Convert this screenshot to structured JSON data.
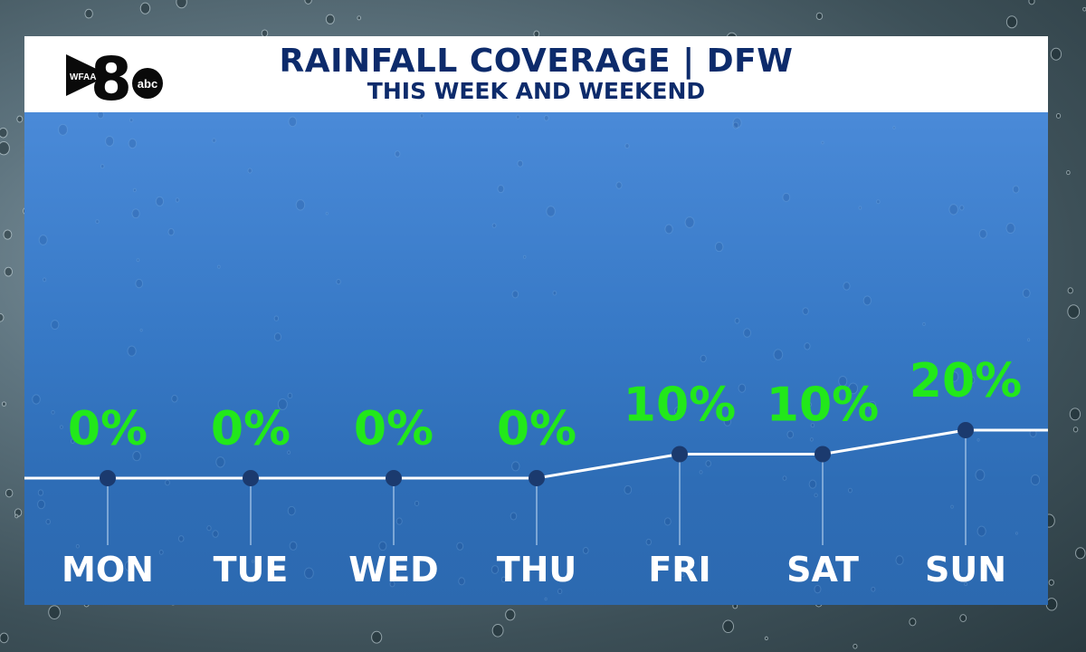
{
  "header": {
    "title": "RAINFALL COVERAGE | DFW",
    "subtitle": "THIS WEEK AND WEEKEND",
    "logo": {
      "station": "WFAA",
      "channel": "8",
      "network": "abc"
    }
  },
  "colors": {
    "title": "#0d2b6b",
    "value_label": "#22e81a",
    "day_label": "#ffffff",
    "line": "#ffffff",
    "marker": "#1b3a6e",
    "panel": "#3779c6"
  },
  "chart_data": {
    "type": "line",
    "title": "RAINFALL COVERAGE | DFW",
    "subtitle": "THIS WEEK AND WEEKEND",
    "categories": [
      "MON",
      "TUE",
      "WED",
      "THU",
      "FRI",
      "SAT",
      "SUN"
    ],
    "series": [
      {
        "values": [
          0,
          0,
          0,
          0,
          10,
          10,
          20
        ]
      }
    ],
    "value_labels": [
      "0%",
      "0%",
      "0%",
      "0%",
      "10%",
      "10%",
      "20%"
    ],
    "unit": "%",
    "grid": false,
    "legend": "none"
  }
}
